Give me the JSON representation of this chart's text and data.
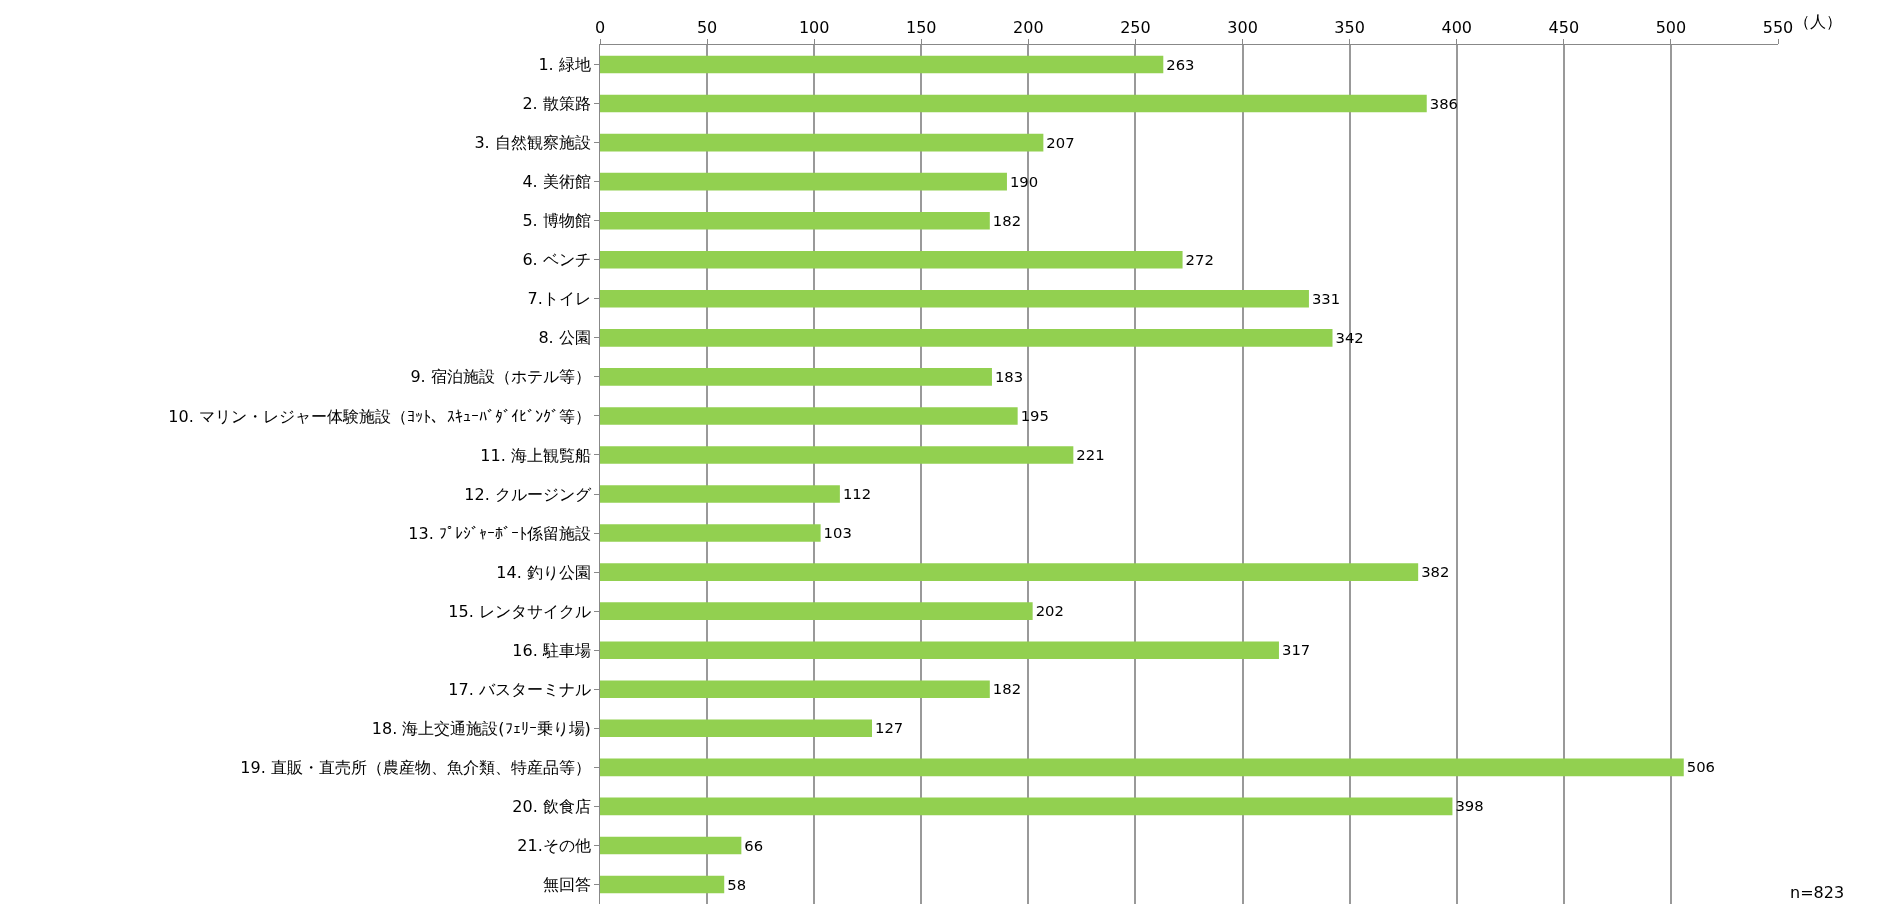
{
  "chart_data": {
    "type": "bar",
    "orientation": "horizontal",
    "xlabel": "（人）",
    "categories": [
      "1. 緑地",
      "2. 散策路",
      "3. 自然観察施設",
      "4. 美術館",
      "5. 博物館",
      "6. ベンチ",
      "7.トイレ",
      "8. 公園",
      "9. 宿泊施設（ホテル等）",
      "10. マリン・レジャー体験施設（ﾖｯﾄ、ｽｷｭｰﾊﾞﾀﾞｲﾋﾞﾝｸﾞ等）",
      "11. 海上観覧船",
      "12. クルージング",
      "13. ﾌﾟﾚｼﾞｬｰﾎﾞｰﾄ係留施設",
      "14. 釣り公園",
      "15. レンタサイクル",
      "16. 駐車場",
      "17. バスターミナル",
      "18. 海上交通施設(ﾌｪﾘｰ乗り場)",
      "19. 直販・直売所（農産物、魚介類、特産品等）",
      "20. 飲食店",
      "21.その他",
      "無回答"
    ],
    "values": [
      263,
      386,
      207,
      190,
      182,
      272,
      331,
      342,
      183,
      195,
      221,
      112,
      103,
      382,
      202,
      317,
      182,
      127,
      506,
      398,
      66,
      58
    ],
    "color": "#92d050",
    "data_labels": true,
    "xlim": [
      0,
      550
    ],
    "xticks": [
      0,
      50,
      100,
      150,
      200,
      250,
      300,
      350,
      400,
      450,
      500,
      550
    ],
    "grid": "x",
    "annotations": [
      "n=823"
    ]
  }
}
